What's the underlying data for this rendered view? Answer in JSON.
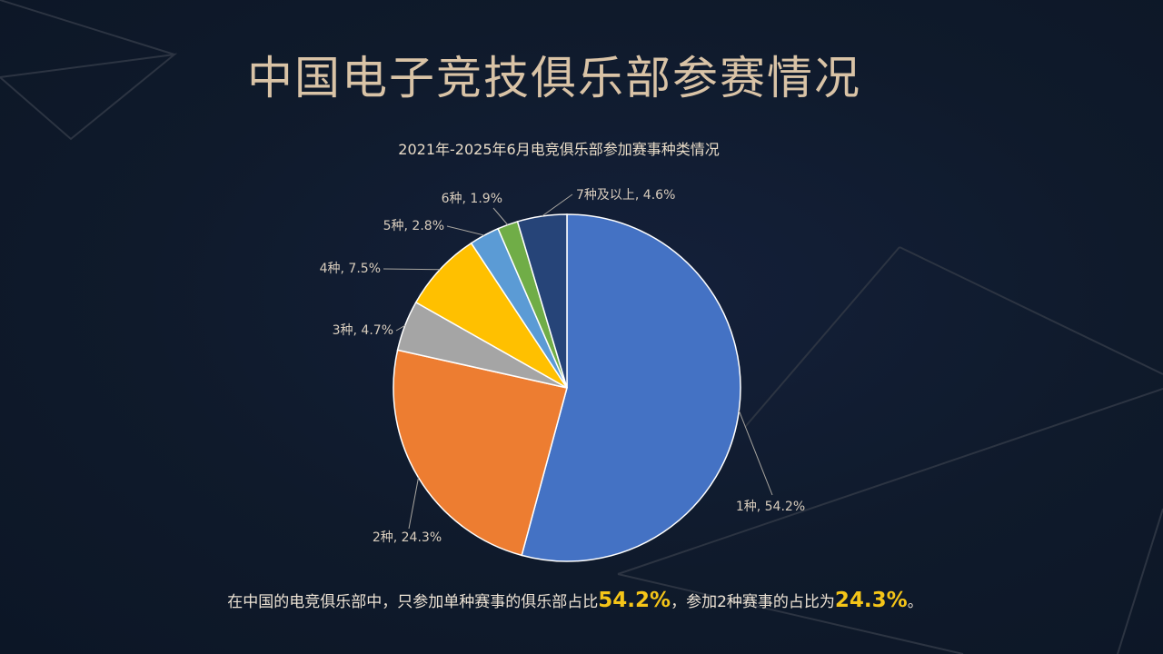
{
  "page": {
    "title": "中国电子竞技俱乐部参赛情况"
  },
  "caption": {
    "part1": "在中国的电竞俱乐部中，只参加单种赛事的俱乐部占比",
    "value1": "54.2%",
    "part2": "，参加2种赛事的占比为",
    "value2": "24.3%",
    "part3": "。"
  },
  "colors": {
    "background": "#0f1a2b",
    "title": "#d9c3a6",
    "highlight": "#f5c518"
  },
  "chart_data": {
    "type": "pie",
    "title": "2021年-2025年6月电竞俱乐部参加赛事种类情况",
    "label_separator": ", ",
    "legend": "none",
    "slices": [
      {
        "name": "1种",
        "value": 54.2,
        "label": "54.2%",
        "color": "#4472c4"
      },
      {
        "name": "2种",
        "value": 24.3,
        "label": "24.3%",
        "color": "#ed7d31"
      },
      {
        "name": "3种",
        "value": 4.7,
        "label": "4.7%",
        "color": "#a5a5a5"
      },
      {
        "name": "4种",
        "value": 7.5,
        "label": "7.5%",
        "color": "#ffc000"
      },
      {
        "name": "5种",
        "value": 2.8,
        "label": "2.8%",
        "color": "#5b9bd5"
      },
      {
        "name": "6种",
        "value": 1.9,
        "label": "1.9%",
        "color": "#70ad47"
      },
      {
        "name": "7种及以上",
        "value": 4.6,
        "label": "4.6%",
        "color": "#264478"
      }
    ]
  }
}
